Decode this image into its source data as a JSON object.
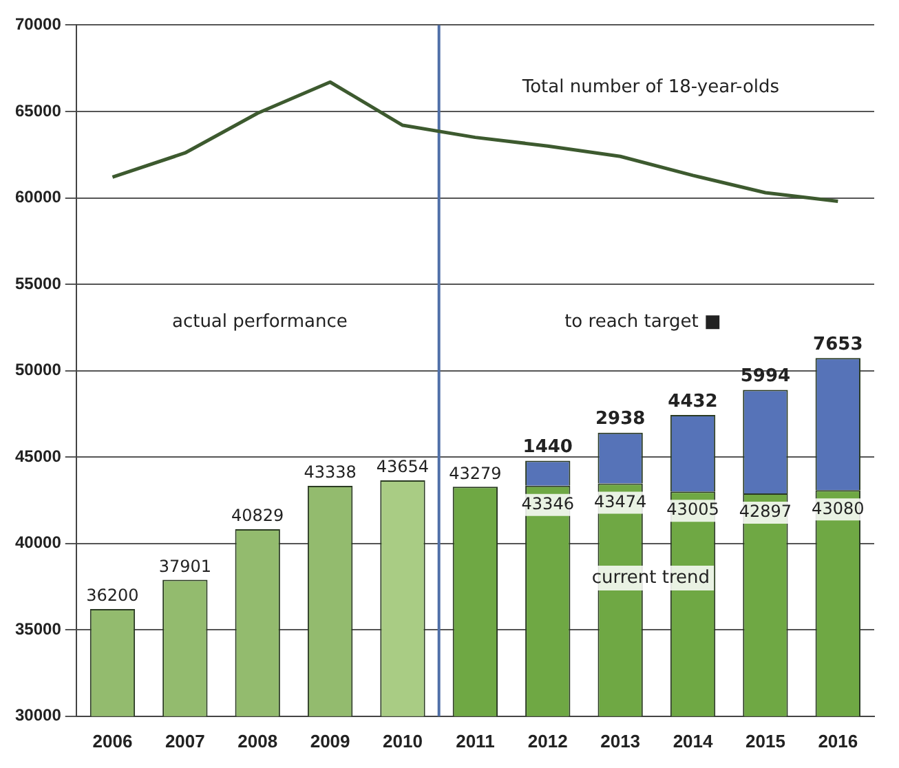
{
  "chart_data": {
    "type": "bar",
    "x": [
      2006,
      2007,
      2008,
      2009,
      2010,
      2011,
      2012,
      2013,
      2014,
      2015,
      2016
    ],
    "xlim": [
      2005.5,
      2016.5
    ],
    "xticks": [
      2006,
      2007,
      2008,
      2009,
      2010,
      2011,
      2012,
      2013,
      2014,
      2015,
      2016
    ],
    "ylim": [
      30000,
      70000
    ],
    "yticks": [
      30000,
      35000,
      40000,
      45000,
      50000,
      55000,
      60000,
      65000,
      70000
    ],
    "grid": "y",
    "series": [
      {
        "colors": [
          "#93bb6e",
          "#93bb6e",
          "#93bb6e",
          "#93bb6e",
          "#a9cc84",
          "#6fa844",
          "#6fa844",
          "#6fa844",
          "#6fa844",
          "#6fa844",
          "#6fa844"
        ],
        "values": [
          36200,
          37901,
          40829,
          43338,
          43654,
          43279,
          43346,
          43474,
          43005,
          42897,
          43080
        ],
        "value_labels": [
          "36200",
          "37901",
          "40829",
          "43338",
          "43654",
          "43279",
          "43346",
          "43474",
          "43005",
          "42897",
          "43080"
        ]
      },
      {
        "color": "#5673b8",
        "base": [
          null,
          null,
          null,
          null,
          null,
          null,
          43346,
          43474,
          43005,
          42897,
          43080
        ],
        "values": [
          null,
          null,
          null,
          null,
          null,
          null,
          1440,
          2938,
          4432,
          5994,
          7653
        ],
        "value_labels": [
          null,
          null,
          null,
          null,
          null,
          null,
          "1440",
          "2938",
          "4432",
          "5994",
          "7653"
        ]
      },
      {
        "type": "line",
        "color": "#3d5a2f",
        "values": [
          61200,
          62600,
          64900,
          66700,
          64200,
          63500,
          63000,
          62400,
          61300,
          60300,
          59800
        ]
      }
    ],
    "ref_lines": [
      {
        "axis": "x",
        "value": 2010.5,
        "color": "#4f6fa8"
      }
    ],
    "annotations": [
      "Total number of 18-year-olds",
      "actual performance",
      "to reach target ■",
      "current trend"
    ]
  }
}
